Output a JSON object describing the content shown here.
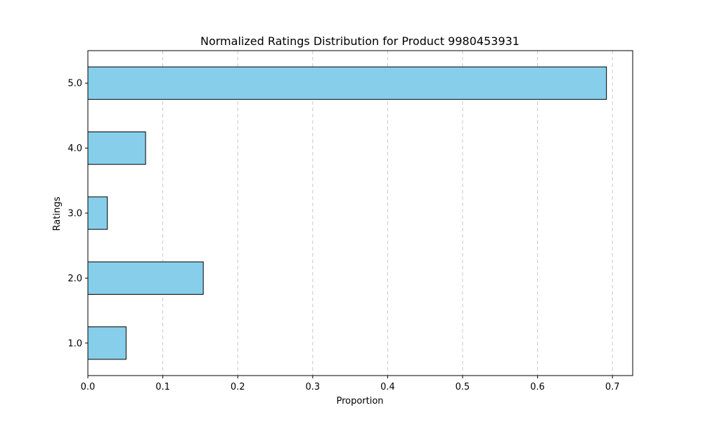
{
  "chart_data": {
    "type": "bar",
    "orientation": "horizontal",
    "title": "Normalized Ratings Distribution for Product 9980453931",
    "xlabel": "Proportion",
    "ylabel": "Ratings",
    "categories": [
      "1.0",
      "2.0",
      "3.0",
      "4.0",
      "5.0"
    ],
    "values": [
      0.051,
      0.154,
      0.026,
      0.077,
      0.692
    ],
    "xlim": [
      0.0,
      0.727
    ],
    "xticks": [
      "0.0",
      "0.1",
      "0.2",
      "0.3",
      "0.4",
      "0.5",
      "0.6",
      "0.7"
    ],
    "grid": "vertical-dashed",
    "bar_color": "#87ceeb",
    "bar_edge_color": "#000000",
    "grid_color": "#c8c8c8"
  }
}
